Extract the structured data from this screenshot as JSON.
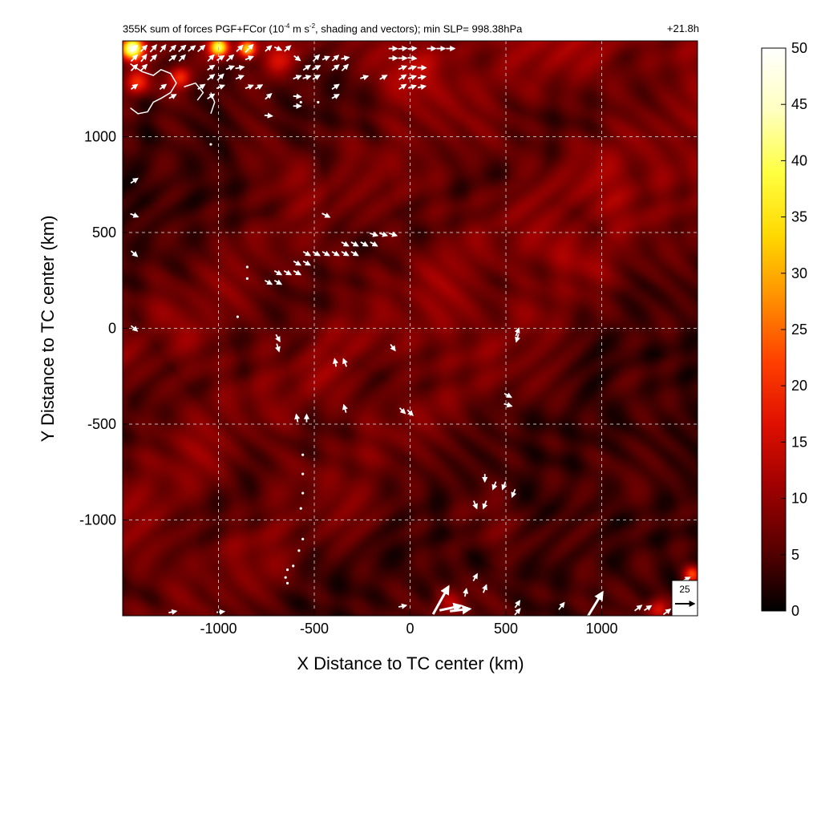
{
  "chart_data": {
    "type": "heatmap",
    "title_parts": {
      "before": "355K sum of forces PGF+FCor (10",
      "exp1": "-4",
      "mid": " m s",
      "exp2": "-2",
      "after": ", shading and vectors); min SLP= 998.38hPa"
    },
    "time_label": "+21.8h",
    "xlabel": "X Distance to TC center (km)",
    "ylabel": "Y Distance to TC center (km)",
    "xlim": [
      -1500,
      1500
    ],
    "ylim": [
      -1500,
      1500
    ],
    "x_ticks": [
      -1000,
      -500,
      0,
      500,
      1000
    ],
    "y_ticks": [
      -1000,
      -500,
      0,
      500,
      1000
    ],
    "x_tick_labels": [
      "-1000",
      "-500",
      "0",
      "500",
      "1000"
    ],
    "y_tick_labels": [
      "-1000",
      "-500",
      "0",
      "500",
      "1000"
    ],
    "grid": true,
    "colorbar": {
      "range": [
        0,
        50
      ],
      "ticks": [
        0,
        5,
        10,
        15,
        20,
        25,
        30,
        35,
        40,
        45,
        50
      ],
      "tick_labels": [
        "0",
        "5",
        "10",
        "15",
        "20",
        "25",
        "30",
        "35",
        "40",
        "45",
        "50"
      ],
      "colors": [
        "#000000",
        "#5a0000",
        "#a00000",
        "#e01000",
        "#ff4000",
        "#ff9000",
        "#ffd800",
        "#ffff40",
        "#ffffc0",
        "#ffffff"
      ]
    },
    "reference_vector": {
      "label": "25",
      "value": 25
    },
    "vectors": [
      {
        "x": -1440,
        "y": 1460,
        "u": 8,
        "v": 8
      },
      {
        "x": -1390,
        "y": 1460,
        "u": 8,
        "v": 8
      },
      {
        "x": -1340,
        "y": 1460,
        "u": 8,
        "v": 9
      },
      {
        "x": -1290,
        "y": 1460,
        "u": 7,
        "v": 9
      },
      {
        "x": -1240,
        "y": 1460,
        "u": 8,
        "v": 8
      },
      {
        "x": -1190,
        "y": 1460,
        "u": 9,
        "v": 8
      },
      {
        "x": -1140,
        "y": 1460,
        "u": 9,
        "v": 7
      },
      {
        "x": -1090,
        "y": 1460,
        "u": 9,
        "v": 8
      },
      {
        "x": -1440,
        "y": 1410,
        "u": 8,
        "v": 8
      },
      {
        "x": -1390,
        "y": 1410,
        "u": 7,
        "v": 9
      },
      {
        "x": -1340,
        "y": 1410,
        "u": 8,
        "v": 8
      },
      {
        "x": -1240,
        "y": 1410,
        "u": 9,
        "v": 7
      },
      {
        "x": -1190,
        "y": 1410,
        "u": 8,
        "v": 8
      },
      {
        "x": -1040,
        "y": 1410,
        "u": 8,
        "v": 8
      },
      {
        "x": -990,
        "y": 1410,
        "u": 9,
        "v": 6
      },
      {
        "x": -940,
        "y": 1410,
        "u": 9,
        "v": 8
      },
      {
        "x": -890,
        "y": 1460,
        "u": 8,
        "v": 8
      },
      {
        "x": -840,
        "y": 1460,
        "u": 10,
        "v": 10
      },
      {
        "x": -840,
        "y": 1410,
        "u": 10,
        "v": 4
      },
      {
        "x": -1440,
        "y": 1360,
        "u": 8,
        "v": 8
      },
      {
        "x": -1390,
        "y": 1360,
        "u": 8,
        "v": 8
      },
      {
        "x": -1040,
        "y": 1360,
        "u": 9,
        "v": 6
      },
      {
        "x": -940,
        "y": 1360,
        "u": 10,
        "v": 4
      },
      {
        "x": -890,
        "y": 1360,
        "u": 11,
        "v": 2
      },
      {
        "x": -1040,
        "y": 1310,
        "u": 9,
        "v": 7
      },
      {
        "x": -990,
        "y": 1310,
        "u": 8,
        "v": 8
      },
      {
        "x": -890,
        "y": 1310,
        "u": 10,
        "v": 4
      },
      {
        "x": -740,
        "y": 1460,
        "u": 8,
        "v": 7
      },
      {
        "x": -690,
        "y": 1460,
        "u": 9,
        "v": -4
      },
      {
        "x": -640,
        "y": 1460,
        "u": 8,
        "v": 7
      },
      {
        "x": -590,
        "y": 1410,
        "u": 8,
        "v": -6
      },
      {
        "x": -490,
        "y": 1410,
        "u": 8,
        "v": 8
      },
      {
        "x": -440,
        "y": 1410,
        "u": 9,
        "v": 4
      },
      {
        "x": -390,
        "y": 1410,
        "u": 8,
        "v": 7
      },
      {
        "x": -340,
        "y": 1410,
        "u": 10,
        "v": 2
      },
      {
        "x": -540,
        "y": 1360,
        "u": 9,
        "v": 6
      },
      {
        "x": -490,
        "y": 1360,
        "u": 10,
        "v": 5
      },
      {
        "x": -390,
        "y": 1360,
        "u": 9,
        "v": 7
      },
      {
        "x": -340,
        "y": 1360,
        "u": 8,
        "v": 8
      },
      {
        "x": -590,
        "y": 1310,
        "u": 10,
        "v": 4
      },
      {
        "x": -540,
        "y": 1310,
        "u": 10,
        "v": 3
      },
      {
        "x": -490,
        "y": 1310,
        "u": 9,
        "v": 5
      },
      {
        "x": -1440,
        "y": 1260,
        "u": 8,
        "v": 6
      },
      {
        "x": -1290,
        "y": 1260,
        "u": 8,
        "v": 6
      },
      {
        "x": -1240,
        "y": 1210,
        "u": 9,
        "v": 5
      },
      {
        "x": -1090,
        "y": 1260,
        "u": 9,
        "v": 6
      },
      {
        "x": -1040,
        "y": 1210,
        "u": 9,
        "v": 6
      },
      {
        "x": -990,
        "y": 1260,
        "u": 10,
        "v": 4
      },
      {
        "x": -840,
        "y": 1260,
        "u": 10,
        "v": 4
      },
      {
        "x": -790,
        "y": 1260,
        "u": 9,
        "v": 5
      },
      {
        "x": -740,
        "y": 1210,
        "u": 8,
        "v": 7
      },
      {
        "x": -590,
        "y": 1210,
        "u": 10,
        "v": -1
      },
      {
        "x": -590,
        "y": 1160,
        "u": 10,
        "v": 0
      },
      {
        "x": -390,
        "y": 1260,
        "u": 9,
        "v": 6
      },
      {
        "x": -390,
        "y": 1210,
        "u": 9,
        "v": 5
      },
      {
        "x": -740,
        "y": 1110,
        "u": 10,
        "v": -1
      },
      {
        "x": -240,
        "y": 1310,
        "u": 10,
        "v": 3
      },
      {
        "x": -140,
        "y": 1310,
        "u": 9,
        "v": 5
      },
      {
        "x": -90,
        "y": 1460,
        "u": 11,
        "v": 0
      },
      {
        "x": -40,
        "y": 1460,
        "u": 11,
        "v": 1
      },
      {
        "x": 10,
        "y": 1460,
        "u": 11,
        "v": 1
      },
      {
        "x": -90,
        "y": 1410,
        "u": 11,
        "v": 0
      },
      {
        "x": -40,
        "y": 1410,
        "u": 11,
        "v": 0
      },
      {
        "x": 10,
        "y": 1410,
        "u": 11,
        "v": -1
      },
      {
        "x": -40,
        "y": 1360,
        "u": 10,
        "v": 4
      },
      {
        "x": 10,
        "y": 1360,
        "u": 10,
        "v": 3
      },
      {
        "x": 60,
        "y": 1360,
        "u": 11,
        "v": 0
      },
      {
        "x": -40,
        "y": 1310,
        "u": 9,
        "v": 6
      },
      {
        "x": 10,
        "y": 1310,
        "u": 10,
        "v": 3
      },
      {
        "x": 60,
        "y": 1310,
        "u": 10,
        "v": 2
      },
      {
        "x": -40,
        "y": 1260,
        "u": 9,
        "v": 6
      },
      {
        "x": 10,
        "y": 1260,
        "u": 10,
        "v": 3
      },
      {
        "x": 60,
        "y": 1260,
        "u": 10,
        "v": 2
      },
      {
        "x": 110,
        "y": 1460,
        "u": 11,
        "v": 0
      },
      {
        "x": 160,
        "y": 1460,
        "u": 11,
        "v": 0
      },
      {
        "x": 210,
        "y": 1460,
        "u": 11,
        "v": 0
      },
      {
        "x": -1440,
        "y": 770,
        "u": 9,
        "v": 6
      },
      {
        "x": -1440,
        "y": 590,
        "u": 10,
        "v": -4
      },
      {
        "x": -1440,
        "y": 390,
        "u": 8,
        "v": -7
      },
      {
        "x": -1440,
        "y": 0,
        "u": 8,
        "v": -7
      },
      {
        "x": -440,
        "y": 590,
        "u": 10,
        "v": -5
      },
      {
        "x": -190,
        "y": 490,
        "u": 10,
        "v": -3
      },
      {
        "x": -140,
        "y": 490,
        "u": 10,
        "v": -3
      },
      {
        "x": -90,
        "y": 490,
        "u": 10,
        "v": -3
      },
      {
        "x": -340,
        "y": 440,
        "u": 9,
        "v": -5
      },
      {
        "x": -290,
        "y": 440,
        "u": 9,
        "v": -5
      },
      {
        "x": -240,
        "y": 440,
        "u": 9,
        "v": -5
      },
      {
        "x": -190,
        "y": 440,
        "u": 9,
        "v": -5
      },
      {
        "x": -540,
        "y": 390,
        "u": 9,
        "v": -5
      },
      {
        "x": -490,
        "y": 390,
        "u": 9,
        "v": -5
      },
      {
        "x": -440,
        "y": 390,
        "u": 9,
        "v": -5
      },
      {
        "x": -390,
        "y": 390,
        "u": 9,
        "v": -5
      },
      {
        "x": -340,
        "y": 390,
        "u": 9,
        "v": -5
      },
      {
        "x": -290,
        "y": 390,
        "u": 9,
        "v": -5
      },
      {
        "x": -590,
        "y": 340,
        "u": 9,
        "v": -5
      },
      {
        "x": -540,
        "y": 340,
        "u": 9,
        "v": -5
      },
      {
        "x": -690,
        "y": 290,
        "u": 9,
        "v": -5
      },
      {
        "x": -640,
        "y": 290,
        "u": 9,
        "v": -5
      },
      {
        "x": -590,
        "y": 290,
        "u": 9,
        "v": -5
      },
      {
        "x": -740,
        "y": 240,
        "u": 9,
        "v": -5
      },
      {
        "x": -690,
        "y": 240,
        "u": 9,
        "v": -5
      },
      {
        "x": -690,
        "y": -50,
        "u": 5,
        "v": -9
      },
      {
        "x": -690,
        "y": -100,
        "u": 3,
        "v": -10
      },
      {
        "x": -390,
        "y": -180,
        "u": -2,
        "v": 10
      },
      {
        "x": -340,
        "y": -180,
        "u": -4,
        "v": 10
      },
      {
        "x": -90,
        "y": -100,
        "u": 6,
        "v": -8
      },
      {
        "x": -590,
        "y": -470,
        "u": -2,
        "v": 10
      },
      {
        "x": -540,
        "y": -470,
        "u": 0,
        "v": 10
      },
      {
        "x": -340,
        "y": -420,
        "u": -3,
        "v": 10
      },
      {
        "x": -40,
        "y": -430,
        "u": 7,
        "v": -7
      },
      {
        "x": 0,
        "y": -440,
        "u": 7,
        "v": -7
      },
      {
        "x": 560,
        "y": -50,
        "u": -3,
        "v": -10
      },
      {
        "x": 560,
        "y": -20,
        "u": 4,
        "v": 10
      },
      {
        "x": 510,
        "y": -350,
        "u": 9,
        "v": -5
      },
      {
        "x": 510,
        "y": -400,
        "u": 10,
        "v": -3
      },
      {
        "x": 390,
        "y": -780,
        "u": 0,
        "v": -10
      },
      {
        "x": 440,
        "y": -820,
        "u": -4,
        "v": -10
      },
      {
        "x": 490,
        "y": -820,
        "u": -4,
        "v": -10
      },
      {
        "x": 540,
        "y": -860,
        "u": -4,
        "v": -10
      },
      {
        "x": 340,
        "y": -920,
        "u": 4,
        "v": -10
      },
      {
        "x": 390,
        "y": -920,
        "u": -4,
        "v": -10
      },
      {
        "x": 340,
        "y": -1300,
        "u": 5,
        "v": 9
      },
      {
        "x": 390,
        "y": -1360,
        "u": 4,
        "v": 10
      },
      {
        "x": 290,
        "y": -1380,
        "u": 2,
        "v": 10
      },
      {
        "x": 160,
        "y": -1420,
        "u": 20,
        "v": 36
      },
      {
        "x": 210,
        "y": -1460,
        "u": 28,
        "v": 6
      },
      {
        "x": 260,
        "y": -1470,
        "u": 26,
        "v": 3
      },
      {
        "x": 960,
        "y": -1450,
        "u": 22,
        "v": 36
      },
      {
        "x": 560,
        "y": -1440,
        "u": 6,
        "v": 9
      },
      {
        "x": 790,
        "y": -1450,
        "u": 7,
        "v": 9
      },
      {
        "x": 1190,
        "y": -1460,
        "u": 9,
        "v": 7
      },
      {
        "x": 1240,
        "y": -1460,
        "u": 9,
        "v": 6
      },
      {
        "x": 1440,
        "y": -1310,
        "u": 10,
        "v": 5
      },
      {
        "x": -1240,
        "y": -1480,
        "u": 10,
        "v": 2
      },
      {
        "x": -990,
        "y": -1480,
        "u": 10,
        "v": 1
      },
      {
        "x": -40,
        "y": -1450,
        "u": 10,
        "v": 2
      },
      {
        "x": 560,
        "y": -1480,
        "u": 7,
        "v": 8
      },
      {
        "x": 1340,
        "y": -1480,
        "u": 9,
        "v": 7
      }
    ],
    "contour_paths": [
      [
        [
          -1460,
          1380
        ],
        [
          -1400,
          1340
        ],
        [
          -1340,
          1320
        ],
        [
          -1300,
          1350
        ],
        [
          -1250,
          1330
        ],
        [
          -1220,
          1280
        ],
        [
          -1250,
          1230
        ],
        [
          -1300,
          1200
        ],
        [
          -1340,
          1180
        ],
        [
          -1370,
          1130
        ],
        [
          -1420,
          1120
        ],
        [
          -1460,
          1150
        ]
      ],
      [
        [
          -1180,
          1260
        ],
        [
          -1120,
          1280
        ],
        [
          -1080,
          1230
        ],
        [
          -1110,
          1190
        ]
      ],
      [
        [
          -1040,
          1230
        ],
        [
          -1020,
          1180
        ],
        [
          -1040,
          1120
        ]
      ]
    ],
    "dots": [
      [
        -1040,
        960
      ],
      [
        -850,
        320
      ],
      [
        -850,
        260
      ],
      [
        -900,
        60
      ],
      [
        -560,
        -660
      ],
      [
        -560,
        -760
      ],
      [
        -560,
        -860
      ],
      [
        -570,
        -940
      ],
      [
        -560,
        -1100
      ],
      [
        -580,
        -1160
      ],
      [
        -610,
        -1240
      ],
      [
        -650,
        -1300
      ],
      [
        -640,
        -1260
      ],
      [
        -640,
        -1330
      ],
      [
        -570,
        1180
      ],
      [
        -480,
        1180
      ]
    ],
    "field_seed": 7,
    "background_level": 4.5,
    "bands": [
      {
        "angle_deg": 35,
        "offset": 120,
        "width": 160,
        "amp": 5
      },
      {
        "angle_deg": 35,
        "offset": 760,
        "width": 160,
        "amp": 4
      },
      {
        "angle_deg": 40,
        "offset": -380,
        "width": 150,
        "amp": 4
      }
    ],
    "hotspots": [
      {
        "x": -1450,
        "y": 1460,
        "r": 40,
        "amp": 40
      },
      {
        "x": -1000,
        "y": 1470,
        "r": 35,
        "amp": 35
      },
      {
        "x": -850,
        "y": 1460,
        "r": 30,
        "amp": 25
      },
      {
        "x": -1420,
        "y": 1280,
        "r": 45,
        "amp": 15
      },
      {
        "x": -1200,
        "y": 1310,
        "r": 40,
        "amp": 14
      },
      {
        "x": -700,
        "y": 1400,
        "r": 60,
        "amp": 9
      },
      {
        "x": 1450,
        "y": -1420,
        "r": 40,
        "amp": 20
      },
      {
        "x": 1300,
        "y": -1460,
        "r": 40,
        "amp": 14
      },
      {
        "x": 0,
        "y": 1300,
        "r": 140,
        "amp": 6
      },
      {
        "x": 1470,
        "y": -1280,
        "r": 30,
        "amp": 18
      },
      {
        "x": 200,
        "y": -1440,
        "r": 60,
        "amp": 10
      }
    ]
  }
}
